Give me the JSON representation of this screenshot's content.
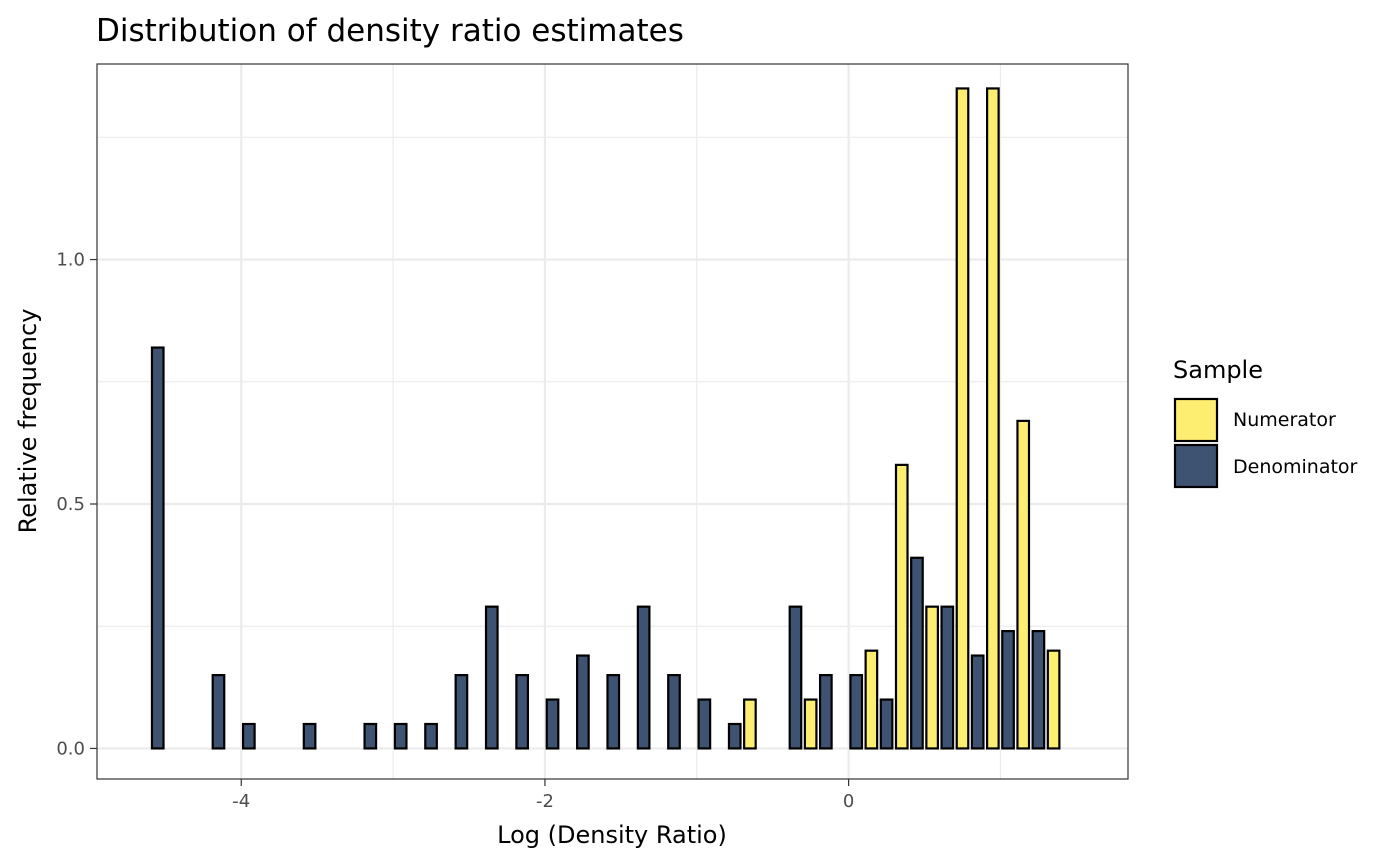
{
  "chart_data": {
    "type": "bar",
    "title": "Distribution of density ratio estimates",
    "xlabel": "Log (Density Ratio)",
    "ylabel": "Relative frequency",
    "xlim": [
      -4.95,
      1.84
    ],
    "ylim": [
      -0.0625,
      1.4
    ],
    "x_ticks": [
      -4,
      -2,
      0
    ],
    "x_tick_labels": [
      "-4",
      "-2",
      "0"
    ],
    "y_ticks": [
      0.0,
      0.5,
      1.0
    ],
    "y_tick_labels": [
      "0.0",
      "0.5",
      "1.0"
    ],
    "grid": true,
    "bin_width": 0.2,
    "x": [
      -4.6,
      -4.4,
      -4.2,
      -4.0,
      -3.8,
      -3.6,
      -3.4,
      -3.2,
      -3.0,
      -2.8,
      -2.6,
      -2.4,
      -2.2,
      -2.0,
      -1.8,
      -1.6,
      -1.4,
      -1.2,
      -1.0,
      -0.8,
      -0.6,
      -0.4,
      -0.2,
      0.0,
      0.2,
      0.4,
      0.6,
      0.8,
      1.0,
      1.2,
      1.4
    ],
    "series": [
      {
        "name": "Numerator",
        "color": "#FDED70",
        "values": [
          0,
          0,
          0,
          0,
          0,
          0,
          0,
          0,
          0,
          0,
          0,
          0,
          0,
          0,
          0,
          0,
          0,
          0,
          0,
          0,
          0.1,
          0,
          0.1,
          0,
          0.2,
          0.58,
          0.29,
          1.35,
          1.35,
          0.67,
          0.2
        ]
      },
      {
        "name": "Denominator",
        "color": "#3E5372",
        "values": [
          0.82,
          0,
          0.15,
          0.05,
          0,
          0.05,
          0,
          0.05,
          0.05,
          0.05,
          0.15,
          0.29,
          0.15,
          0.1,
          0.19,
          0.15,
          0.29,
          0.15,
          0.1,
          0.05,
          0,
          0.29,
          0.15,
          0.15,
          0.1,
          0.39,
          0.29,
          0.19,
          0.24,
          0.24,
          0
        ]
      }
    ],
    "legend": {
      "title": "Sample",
      "position": "right",
      "entries": [
        "Numerator",
        "Denominator"
      ]
    }
  }
}
